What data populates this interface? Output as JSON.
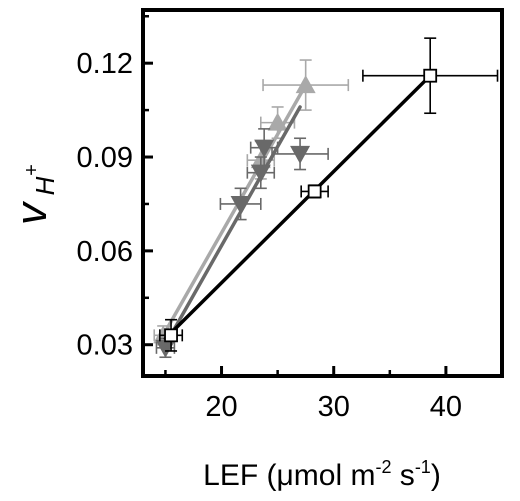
{
  "chart_data": {
    "type": "scatter",
    "xlabel": "LEF (μmol m-2 s-1)",
    "xlabel_parts": {
      "text": "LEF (μmol m",
      "sup1": "-2",
      "mid": " s",
      "sup2": "-1",
      "end": ")"
    },
    "ylabel_parts": {
      "main": "v",
      "sub": "H",
      "sup": "+"
    },
    "xlim": [
      13,
      45
    ],
    "ylim": [
      0.02,
      0.137
    ],
    "x_ticks": [
      20,
      30,
      40
    ],
    "x_tick_labels": [
      "20",
      "30",
      "40"
    ],
    "y_ticks": [
      0.03,
      0.06,
      0.09,
      0.12
    ],
    "y_tick_labels": [
      "0.03",
      "0.06",
      "0.09",
      "0.12"
    ],
    "grid": false,
    "series": [
      {
        "marker": "square-open",
        "color": "#000000",
        "points": [
          {
            "x": 15.5,
            "y": 0.033,
            "xerr": 1.0,
            "yerr": 0.005
          },
          {
            "x": 28.3,
            "y": 0.079,
            "xerr": 1.2,
            "yerr": 0.002
          },
          {
            "x": 38.6,
            "y": 0.116,
            "xerr": 6.0,
            "yerr": 0.012
          }
        ],
        "fit": [
          [
            15.0,
            0.032
          ],
          [
            38.6,
            0.116
          ]
        ]
      },
      {
        "marker": "triangle-up",
        "color": "#a9a9a9",
        "points": [
          {
            "x": 14.8,
            "y": 0.033,
            "xerr": 0.8,
            "yerr": 0.003
          },
          {
            "x": 23.5,
            "y": 0.089,
            "xerr": 1.2,
            "yerr": 0.006
          },
          {
            "x": 25.0,
            "y": 0.101,
            "xerr": 1.5,
            "yerr": 0.005
          },
          {
            "x": 27.5,
            "y": 0.113,
            "xerr": 3.8,
            "yerr": 0.008
          }
        ],
        "fit": [
          [
            14.8,
            0.033
          ],
          [
            27.5,
            0.113
          ]
        ]
      },
      {
        "marker": "triangle-down",
        "color": "#696969",
        "points": [
          {
            "x": 15.0,
            "y": 0.029,
            "xerr": 0.8,
            "yerr": 0.003
          },
          {
            "x": 21.7,
            "y": 0.075,
            "xerr": 1.8,
            "yerr": 0.005
          },
          {
            "x": 23.5,
            "y": 0.085,
            "xerr": 1.2,
            "yerr": 0.005
          },
          {
            "x": 23.8,
            "y": 0.093,
            "xerr": 1.2,
            "yerr": 0.006
          },
          {
            "x": 27.0,
            "y": 0.091,
            "xerr": 2.5,
            "yerr": 0.005
          }
        ],
        "fit": [
          [
            15.0,
            0.03
          ],
          [
            27.0,
            0.106
          ]
        ]
      }
    ]
  }
}
